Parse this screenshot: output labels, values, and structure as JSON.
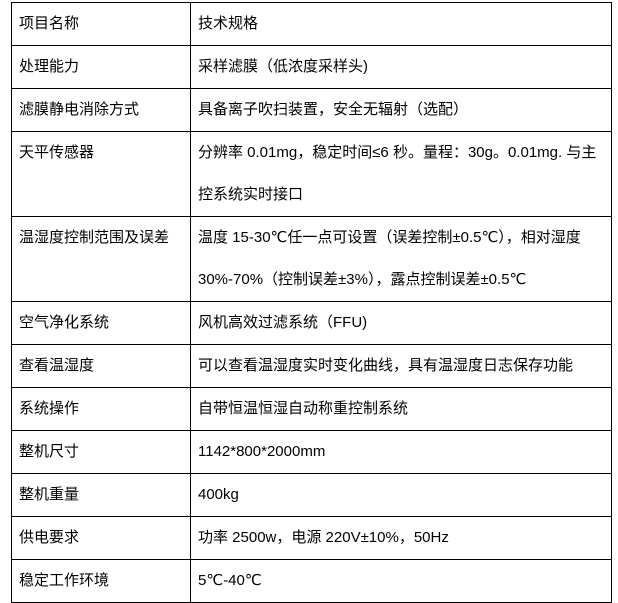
{
  "rows": [
    {
      "name": "项目名称",
      "spec": "技术规格"
    },
    {
      "name": " 处理能力",
      "spec": "采样滤膜（低浓度采样头)"
    },
    {
      "name": "滤膜静电消除方式",
      "spec": "具备离子吹扫装置，安全无辐射（选配）"
    },
    {
      "name": "天平传感器",
      "spec": "分辨率 0.01mg，稳定时间≤6 秒。量程：30g。0.01mg. 与主控系统实时接口"
    },
    {
      "name": "温湿度控制范围及误差",
      "spec": "温度 15-30℃任一点可设置（误差控制±0.5℃），相对湿度 30%-70%（控制误差±3%），露点控制误差±0.5℃"
    },
    {
      "name": "空气净化系统",
      "spec": "风机高效过滤系统（FFU)"
    },
    {
      "name": "查看温湿度",
      "spec": "可以查看温湿度实时变化曲线，具有温湿度日志保存功能"
    },
    {
      "name": "系统操作",
      "spec": "自带恒温恒湿自动称重控制系统"
    },
    {
      "name": "整机尺寸",
      "spec": "1142*800*2000mm"
    },
    {
      "name": "整机重量",
      "spec": "400kg"
    },
    {
      "name": "供电要求",
      "spec": "功率 2500w，电源 220V±10%，50Hz"
    },
    {
      "name": "稳定工作环境",
      "spec": "5℃-40℃"
    }
  ]
}
